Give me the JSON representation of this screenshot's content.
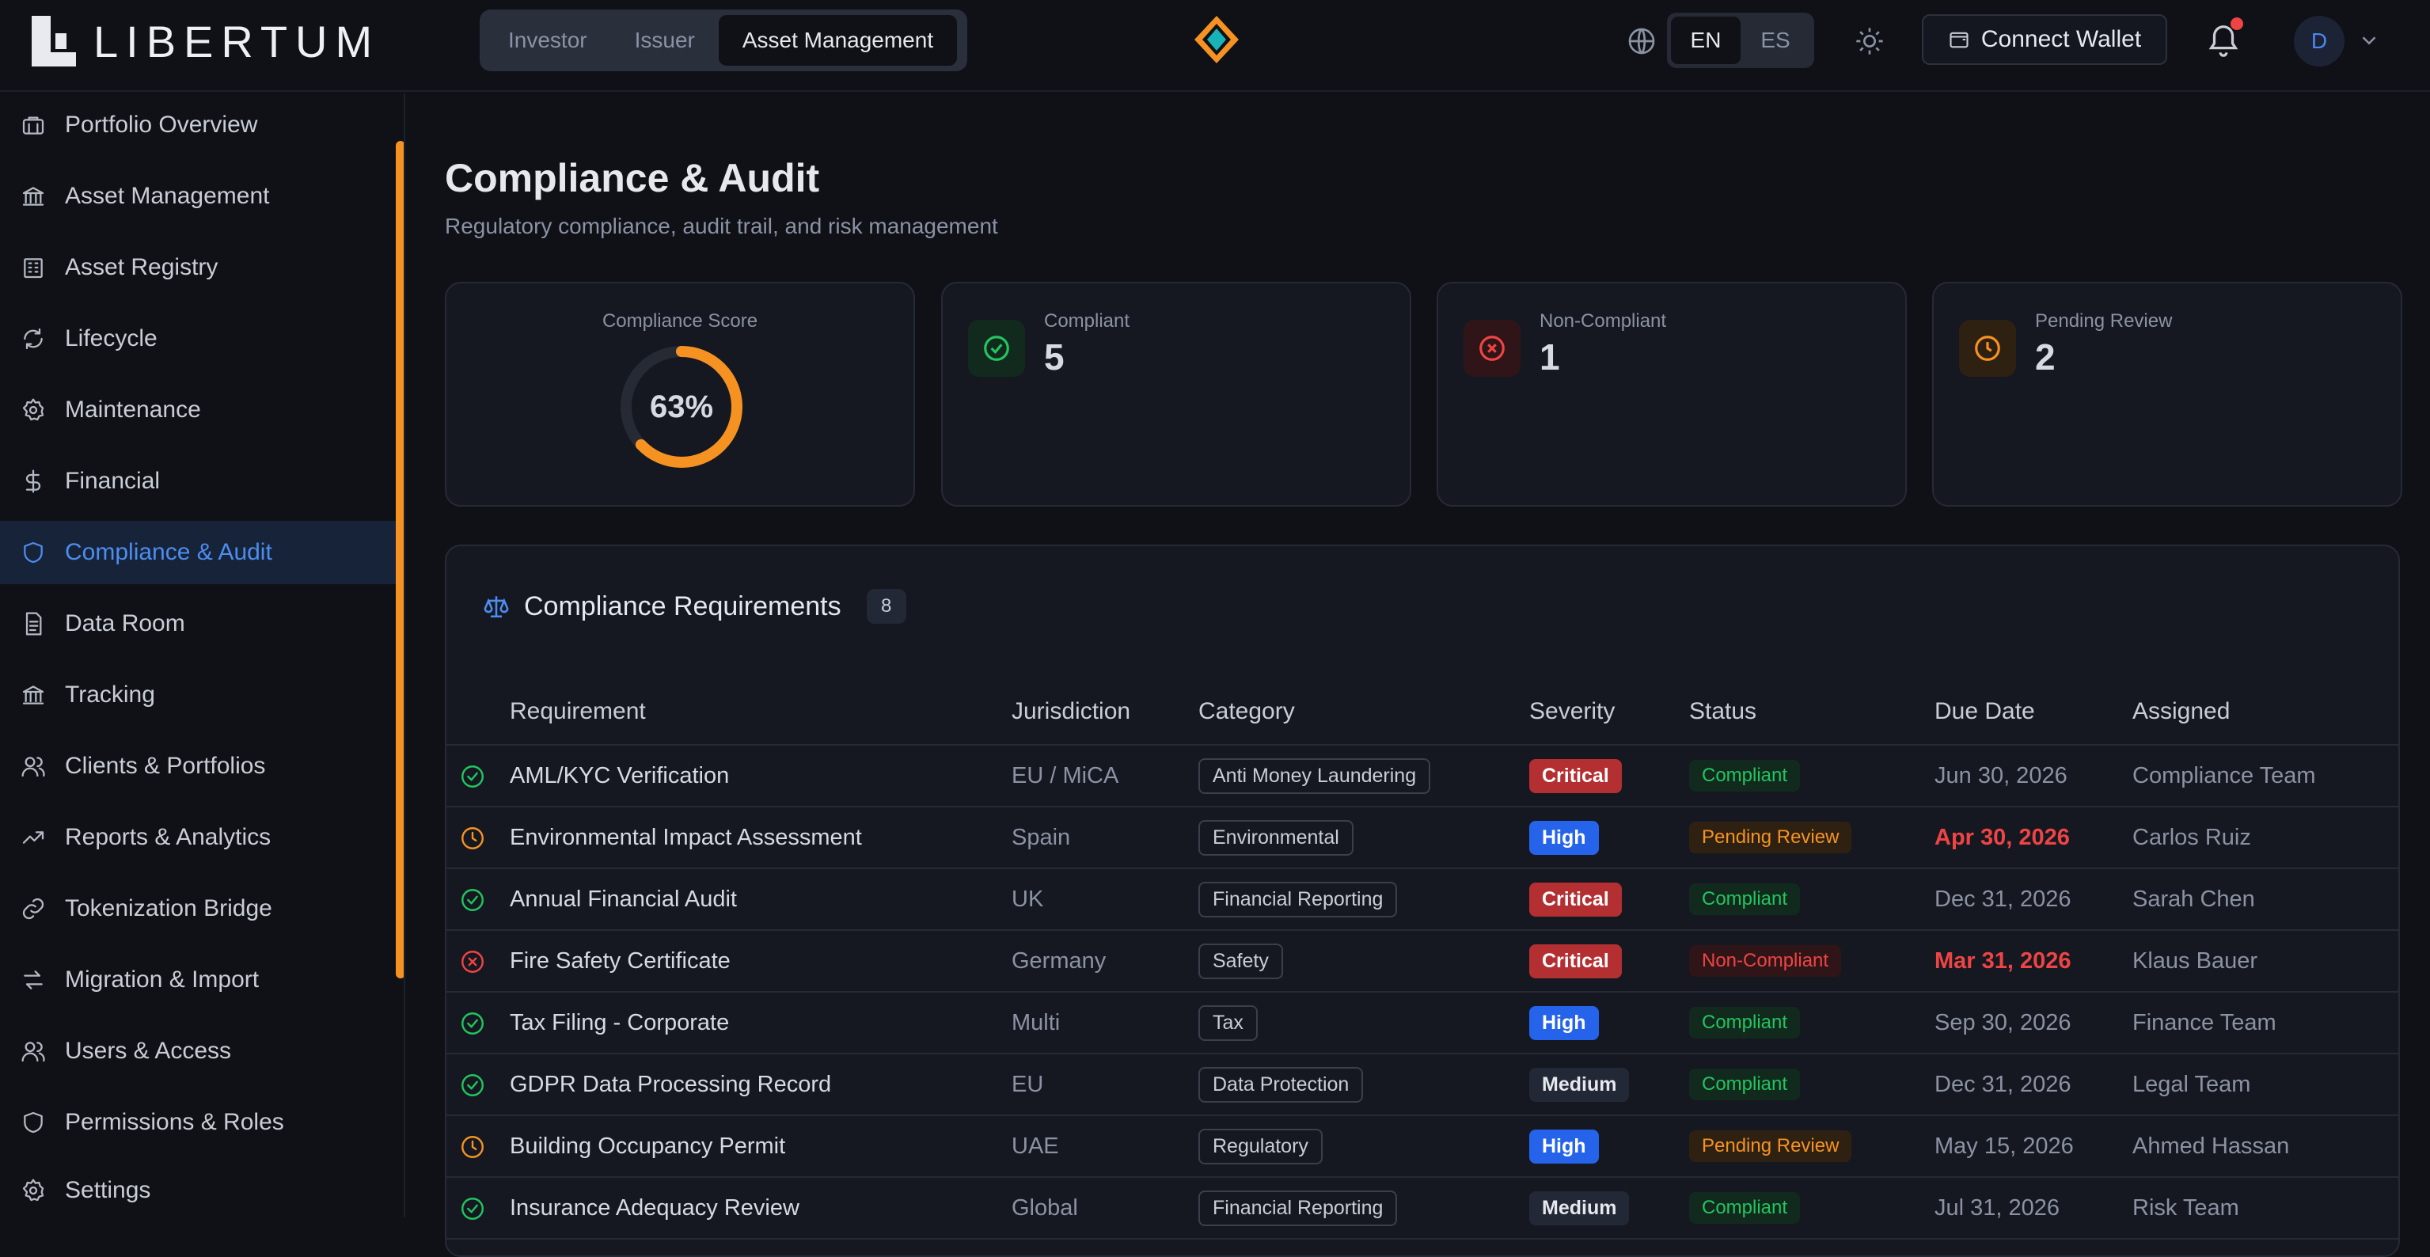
{
  "header": {
    "brand": "LIBERTUM",
    "roles": [
      "Investor",
      "Issuer",
      "Asset Management"
    ],
    "active_role": "Asset Management",
    "languages": [
      "EN",
      "ES"
    ],
    "active_language": "EN",
    "wallet_label": "Connect Wallet",
    "avatar_initial": "D"
  },
  "sidebar": {
    "items": [
      {
        "label": "Portfolio Overview",
        "icon": "briefcase-icon"
      },
      {
        "label": "Asset Management",
        "icon": "bank-icon"
      },
      {
        "label": "Asset Registry",
        "icon": "building-icon"
      },
      {
        "label": "Lifecycle",
        "icon": "refresh-icon"
      },
      {
        "label": "Maintenance",
        "icon": "gear-icon"
      },
      {
        "label": "Financial",
        "icon": "dollar-icon"
      },
      {
        "label": "Compliance & Audit",
        "icon": "shield-icon"
      },
      {
        "label": "Data Room",
        "icon": "document-icon"
      },
      {
        "label": "Tracking",
        "icon": "bank-icon"
      },
      {
        "label": "Clients & Portfolios",
        "icon": "users-icon"
      },
      {
        "label": "Reports & Analytics",
        "icon": "trending-up-icon"
      },
      {
        "label": "Tokenization Bridge",
        "icon": "link-icon"
      },
      {
        "label": "Migration & Import",
        "icon": "swap-icon"
      },
      {
        "label": "Users & Access",
        "icon": "users-icon"
      },
      {
        "label": "Permissions & Roles",
        "icon": "shield-icon"
      },
      {
        "label": "Settings",
        "icon": "gear-icon"
      }
    ],
    "active_item": "Compliance & Audit"
  },
  "page": {
    "title": "Compliance & Audit",
    "subtitle": "Regulatory compliance, audit trail, and risk management"
  },
  "stats": {
    "score_label": "Compliance Score",
    "score_value": "63%",
    "score_fraction": 0.63,
    "compliant_label": "Compliant",
    "compliant_value": "5",
    "noncompliant_label": "Non-Compliant",
    "noncompliant_value": "1",
    "pending_label": "Pending Review",
    "pending_value": "2"
  },
  "requirements": {
    "title": "Compliance Requirements",
    "count": "8",
    "columns": [
      "Requirement",
      "Jurisdiction",
      "Category",
      "Severity",
      "Status",
      "Due Date",
      "Assigned"
    ],
    "rows": [
      {
        "status_icon": "check-circle-icon",
        "requirement": "AML/KYC Verification",
        "jurisdiction": "EU / MiCA",
        "category": "Anti Money Laundering",
        "severity": "Critical",
        "status": "Compliant",
        "due": "Jun 30, 2026",
        "due_alert": false,
        "assigned": "Compliance Team"
      },
      {
        "status_icon": "clock-icon",
        "requirement": "Environmental Impact Assessment",
        "jurisdiction": "Spain",
        "category": "Environmental",
        "severity": "High",
        "status": "Pending Review",
        "due": "Apr 30, 2026",
        "due_alert": true,
        "assigned": "Carlos Ruiz"
      },
      {
        "status_icon": "check-circle-icon",
        "requirement": "Annual Financial Audit",
        "jurisdiction": "UK",
        "category": "Financial Reporting",
        "severity": "Critical",
        "status": "Compliant",
        "due": "Dec 31, 2026",
        "due_alert": false,
        "assigned": "Sarah Chen"
      },
      {
        "status_icon": "x-circle-icon",
        "requirement": "Fire Safety Certificate",
        "jurisdiction": "Germany",
        "category": "Safety",
        "severity": "Critical",
        "status": "Non-Compliant",
        "due": "Mar 31, 2026",
        "due_alert": true,
        "assigned": "Klaus Bauer"
      },
      {
        "status_icon": "check-circle-icon",
        "requirement": "Tax Filing - Corporate",
        "jurisdiction": "Multi",
        "category": "Tax",
        "severity": "High",
        "status": "Compliant",
        "due": "Sep 30, 2026",
        "due_alert": false,
        "assigned": "Finance Team"
      },
      {
        "status_icon": "check-circle-icon",
        "requirement": "GDPR Data Processing Record",
        "jurisdiction": "EU",
        "category": "Data Protection",
        "severity": "Medium",
        "status": "Compliant",
        "due": "Dec 31, 2026",
        "due_alert": false,
        "assigned": "Legal Team"
      },
      {
        "status_icon": "clock-icon",
        "requirement": "Building Occupancy Permit",
        "jurisdiction": "UAE",
        "category": "Regulatory",
        "severity": "High",
        "status": "Pending Review",
        "due": "May 15, 2026",
        "due_alert": false,
        "assigned": "Ahmed Hassan"
      },
      {
        "status_icon": "check-circle-icon",
        "requirement": "Insurance Adequacy Review",
        "jurisdiction": "Global",
        "category": "Financial Reporting",
        "severity": "Medium",
        "status": "Compliant",
        "due": "Jul 31, 2026",
        "due_alert": false,
        "assigned": "Risk Team"
      }
    ]
  },
  "colors": {
    "accent": "#f59222",
    "active_blue": "#4c8df0",
    "compliant": "#22c55e",
    "pending": "#f59222",
    "noncompliant": "#ef4444"
  }
}
